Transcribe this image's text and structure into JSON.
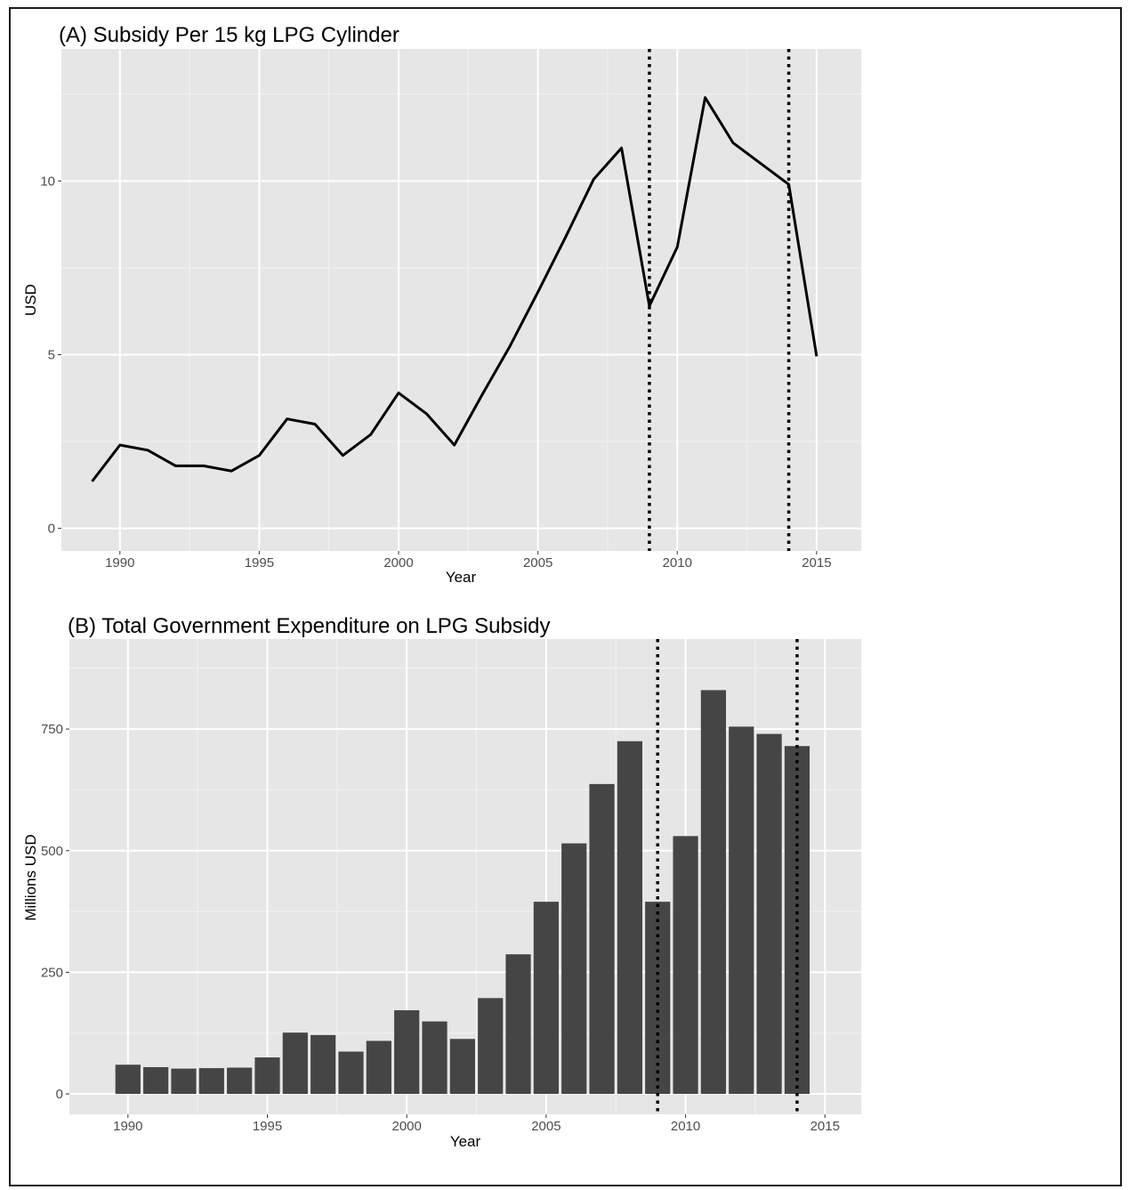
{
  "chart_data": [
    {
      "type": "line",
      "title": "(A) Subsidy Per 15 kg LPG Cylinder",
      "xlabel": "Year",
      "ylabel": "USD",
      "x": [
        1989,
        1990,
        1991,
        1992,
        1993,
        1994,
        1995,
        1996,
        1997,
        1998,
        1999,
        2000,
        2001,
        2002,
        2003,
        2004,
        2005,
        2006,
        2007,
        2008,
        2009,
        2010,
        2011,
        2012,
        2013,
        2014,
        2015
      ],
      "series": [
        {
          "values": [
            1.35,
            2.4,
            2.25,
            1.8,
            1.8,
            1.65,
            2.1,
            3.15,
            3.0,
            2.1,
            2.7,
            3.9,
            3.3,
            2.4,
            3.85,
            5.25,
            6.8,
            8.4,
            10.05,
            10.95,
            6.4,
            8.1,
            12.4,
            11.1,
            10.5,
            9.9,
            4.95
          ]
        }
      ],
      "xlim": [
        1987.9,
        2016.6
      ],
      "ylim": [
        -0.65,
        13.8
      ],
      "xticks": [
        "1990",
        "1995",
        "2000",
        "2005",
        "2010",
        "2015"
      ],
      "yticks": [
        "0",
        "5",
        "10"
      ],
      "vlines": [
        2009,
        2014
      ],
      "line_color": "#000000",
      "panel_color": "#e6e6e6",
      "grid": true
    },
    {
      "type": "bar",
      "title": "(B) Total Government Expenditure on LPG Subsidy",
      "xlabel": "Year",
      "ylabel": "Millions USD",
      "x": [
        1990,
        1991,
        1992,
        1993,
        1994,
        1995,
        1996,
        1997,
        1998,
        1999,
        2000,
        2001,
        2002,
        2003,
        2004,
        2005,
        2006,
        2007,
        2008,
        2009,
        2010,
        2011,
        2012,
        2013,
        2014
      ],
      "values": [
        60,
        55,
        52,
        53,
        54,
        75,
        126,
        121,
        87,
        109,
        172,
        149,
        113,
        197,
        287,
        395,
        515,
        637,
        725,
        395,
        530,
        830,
        755,
        740,
        715
      ],
      "xlim": [
        1987.9,
        2016.3
      ],
      "ylim": [
        -42,
        935
      ],
      "xticks": [
        "1990",
        "1995",
        "2000",
        "2005",
        "2010",
        "2015"
      ],
      "yticks": [
        "0",
        "250",
        "500",
        "750"
      ],
      "vlines": [
        2009,
        2014
      ],
      "bar_color": "#454545",
      "panel_color": "#e6e6e6",
      "grid": true
    }
  ]
}
